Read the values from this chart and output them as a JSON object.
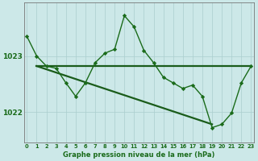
{
  "line_main": {
    "x": [
      0,
      1,
      2,
      3,
      4,
      5,
      6,
      7,
      8,
      9,
      10,
      11,
      12,
      13,
      14,
      15,
      16,
      17,
      18,
      19,
      20,
      21,
      22,
      23
    ],
    "y": [
      1023.35,
      1023.0,
      1022.82,
      1022.78,
      1022.52,
      1022.28,
      1022.52,
      1022.88,
      1023.05,
      1023.12,
      1023.72,
      1023.52,
      1023.1,
      1022.88,
      1022.62,
      1022.52,
      1022.42,
      1022.48,
      1022.28,
      1021.72,
      1021.78,
      1021.98,
      1022.52,
      1022.82
    ],
    "color": "#1a6b1a",
    "linewidth": 1.0,
    "markersize": 2.2
  },
  "line_flat": {
    "x": [
      1,
      23
    ],
    "y": [
      1022.82,
      1022.82
    ],
    "color": "#1a5c1a",
    "linewidth": 1.6
  },
  "line_diag": {
    "x": [
      1,
      19
    ],
    "y": [
      1022.82,
      1021.78
    ],
    "color": "#1a5c1a",
    "linewidth": 1.6
  },
  "background_color": "#cce8e8",
  "grid_color": "#aacece",
  "text_color": "#1a6b1a",
  "ylabel_vals": [
    1022,
    1023
  ],
  "ylabel_labels": [
    "1022",
    "1023"
  ],
  "xlabel": "Graphe pression niveau de la mer (hPa)",
  "xlim": [
    -0.3,
    23.3
  ],
  "ylim": [
    1021.45,
    1023.95
  ],
  "figsize": [
    3.2,
    2.0
  ],
  "dpi": 100
}
